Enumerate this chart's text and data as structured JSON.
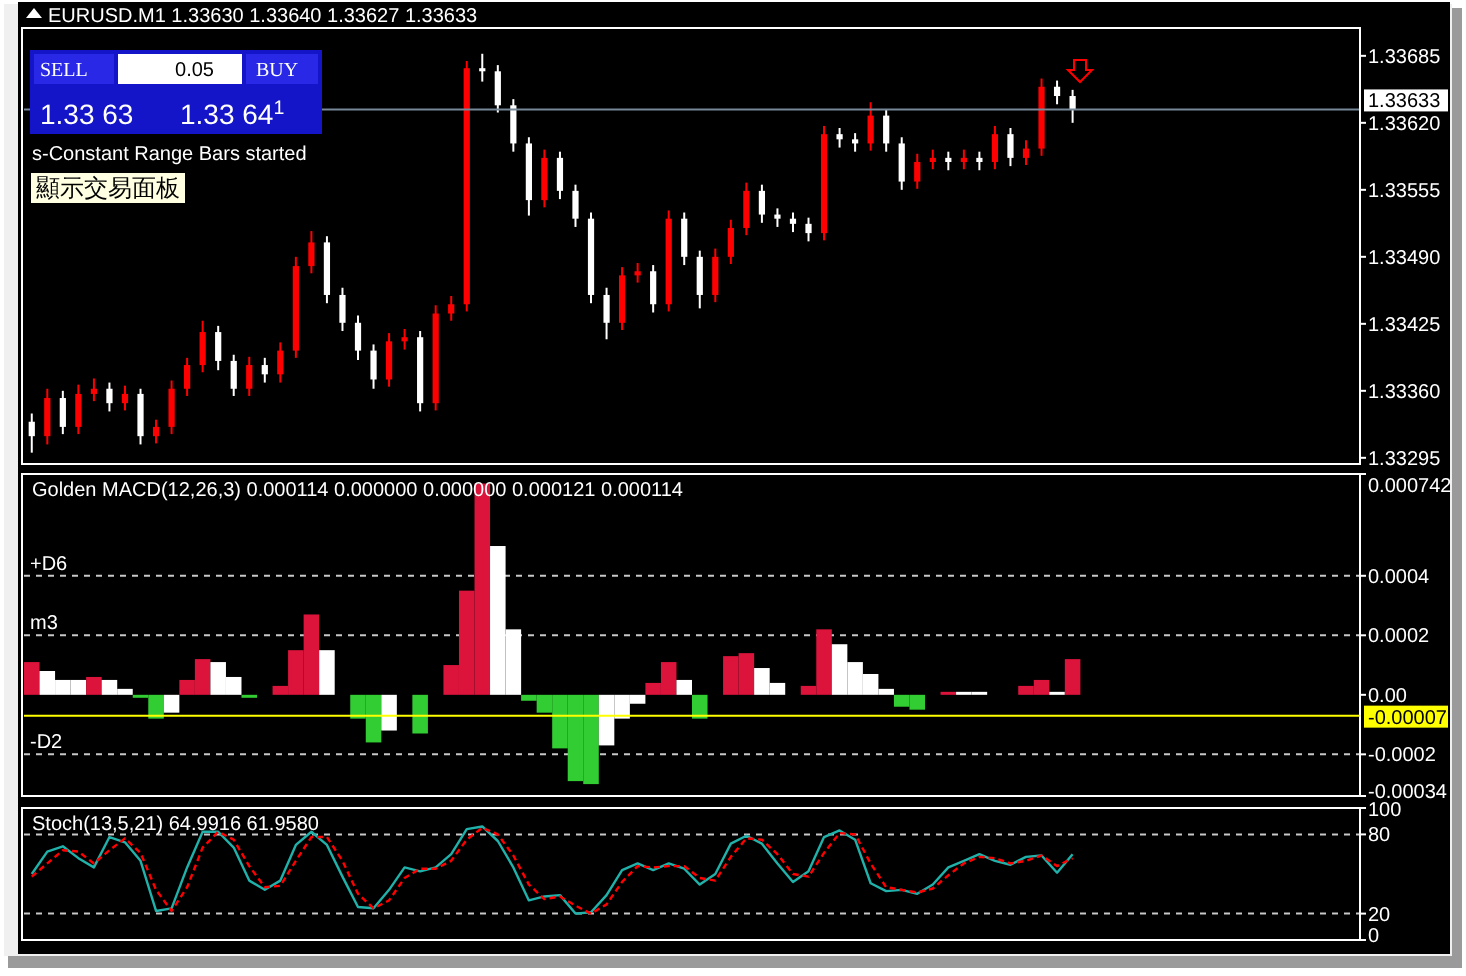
{
  "chart_data": [
    {
      "type": "candlestick",
      "title": "EURUSD.M1 1.33630 1.33640 1.33627 1.33633",
      "annotations": [
        "s-Constant Range Bars started",
        "SELL",
        "0.05",
        "BUY",
        "1.33 63",
        "1.33 64$^{1}$",
        "顯示交易面板"
      ],
      "categories": [
        null,
        null,
        null,
        null,
        null,
        null,
        null,
        null,
        null,
        null,
        null,
        null,
        null,
        null,
        null,
        null,
        null,
        null,
        null,
        null,
        null,
        null,
        null,
        null,
        null,
        null,
        null,
        null,
        null,
        null,
        null,
        null,
        null,
        null,
        null,
        null,
        null,
        null,
        null,
        null,
        null,
        null,
        null,
        null,
        null,
        null,
        null,
        null,
        null,
        null,
        null,
        null,
        null,
        null,
        null,
        null,
        null,
        null,
        null,
        null,
        null,
        null,
        null,
        null,
        null,
        null,
        null,
        null,
        null,
        null,
        null,
        null,
        null,
        null,
        null,
        null,
        null,
        null,
        null,
        null,
        null,
        null,
        null,
        null,
        null,
        null
      ],
      "ohlc": [
        [
          1.3333,
          1.33338,
          1.333,
          1.33316
        ],
        [
          1.33316,
          1.33362,
          1.33308,
          1.33353
        ],
        [
          1.33353,
          1.3336,
          1.33318,
          1.33325
        ],
        [
          1.33325,
          1.33366,
          1.33318,
          1.33357
        ],
        [
          1.33357,
          1.33372,
          1.3335,
          1.33362
        ],
        [
          1.33362,
          1.33368,
          1.3334,
          1.33348
        ],
        [
          1.33348,
          1.33365,
          1.33341,
          1.33357
        ],
        [
          1.33357,
          1.33362,
          1.33308,
          1.33316
        ],
        [
          1.33316,
          1.33332,
          1.33309,
          1.33325
        ],
        [
          1.33325,
          1.3337,
          1.33318,
          1.33362
        ],
        [
          1.33362,
          1.33392,
          1.33355,
          1.33385
        ],
        [
          1.33385,
          1.33428,
          1.33378,
          1.33417
        ],
        [
          1.33417,
          1.33423,
          1.3338,
          1.33389
        ],
        [
          1.33389,
          1.33395,
          1.33355,
          1.33362
        ],
        [
          1.33362,
          1.33393,
          1.33355,
          1.33385
        ],
        [
          1.33385,
          1.33392,
          1.33368,
          1.33376
        ],
        [
          1.33376,
          1.33407,
          1.33368,
          1.33399
        ],
        [
          1.33399,
          1.3349,
          1.33392,
          1.33481
        ],
        [
          1.33481,
          1.33515,
          1.33474,
          1.33504
        ],
        [
          1.33504,
          1.3351,
          1.33445,
          1.33453
        ],
        [
          1.33453,
          1.3346,
          1.33418,
          1.33426
        ],
        [
          1.33426,
          1.33433,
          1.3339,
          1.33399
        ],
        [
          1.33399,
          1.33405,
          1.33362,
          1.33371
        ],
        [
          1.33371,
          1.33416,
          1.33364,
          1.33408
        ],
        [
          1.33408,
          1.3342,
          1.334,
          1.33412
        ],
        [
          1.33412,
          1.33418,
          1.3334,
          1.33348
        ],
        [
          1.33348,
          1.33443,
          1.33341,
          1.33435
        ],
        [
          1.33435,
          1.33452,
          1.33428,
          1.33444
        ],
        [
          1.33444,
          1.3368,
          1.33437,
          1.33673
        ],
        [
          1.33673,
          1.33687,
          1.3366,
          1.3367
        ],
        [
          1.3367,
          1.33676,
          1.3363,
          1.33637
        ],
        [
          1.33637,
          1.33643,
          1.33592,
          1.336
        ],
        [
          1.336,
          1.33606,
          1.3353,
          1.33545
        ],
        [
          1.33545,
          1.33594,
          1.33538,
          1.33586
        ],
        [
          1.33586,
          1.33592,
          1.33546,
          1.33554
        ],
        [
          1.33554,
          1.3356,
          1.33519,
          1.33527
        ],
        [
          1.33527,
          1.33533,
          1.33445,
          1.33453
        ],
        [
          1.33453,
          1.3346,
          1.3341,
          1.33426
        ],
        [
          1.33426,
          1.3348,
          1.33419,
          1.33472
        ],
        [
          1.33472,
          1.33484,
          1.33465,
          1.33476
        ],
        [
          1.33476,
          1.33482,
          1.33436,
          1.33444
        ],
        [
          1.33444,
          1.33535,
          1.33437,
          1.33527
        ],
        [
          1.33527,
          1.33533,
          1.33482,
          1.3349
        ],
        [
          1.3349,
          1.33496,
          1.3344,
          1.33453
        ],
        [
          1.33453,
          1.33498,
          1.33446,
          1.3349
        ],
        [
          1.3349,
          1.33526,
          1.33483,
          1.33518
        ],
        [
          1.33518,
          1.33562,
          1.33511,
          1.33554
        ],
        [
          1.33554,
          1.3356,
          1.33523,
          1.33531
        ],
        [
          1.33531,
          1.33537,
          1.33519,
          1.33527
        ],
        [
          1.33527,
          1.33533,
          1.33514,
          1.33522
        ],
        [
          1.33522,
          1.33528,
          1.33505,
          1.33513
        ],
        [
          1.33513,
          1.33617,
          1.33506,
          1.33609
        ],
        [
          1.33609,
          1.33615,
          1.33596,
          1.33604
        ],
        [
          1.33604,
          1.3361,
          1.33592,
          1.336
        ],
        [
          1.336,
          1.3364,
          1.33593,
          1.33627
        ],
        [
          1.33627,
          1.33633,
          1.33592,
          1.336
        ],
        [
          1.336,
          1.33606,
          1.33555,
          1.33563
        ],
        [
          1.33563,
          1.3359,
          1.33556,
          1.33582
        ],
        [
          1.33582,
          1.33594,
          1.33575,
          1.33586
        ],
        [
          1.33586,
          1.33592,
          1.33574,
          1.33582
        ],
        [
          1.33582,
          1.33594,
          1.33575,
          1.33586
        ],
        [
          1.33586,
          1.33592,
          1.33574,
          1.33582
        ],
        [
          1.33582,
          1.33617,
          1.33575,
          1.33609
        ],
        [
          1.33609,
          1.33615,
          1.33578,
          1.33586
        ],
        [
          1.33586,
          1.33603,
          1.33579,
          1.33595
        ],
        [
          1.33595,
          1.33663,
          1.33588,
          1.33655
        ],
        [
          1.33655,
          1.33661,
          1.33638,
          1.33646
        ],
        [
          1.33646,
          1.33652,
          1.3362,
          1.33633
        ],
        null,
        null,
        null,
        null,
        null,
        null,
        null,
        null,
        null,
        null,
        null,
        null,
        null,
        null,
        null,
        null,
        null,
        null
      ],
      "colors": [
        "#ffffff",
        "#ff0000",
        "#ffffff",
        "#ff0000",
        "#ff0000",
        "#ffffff",
        "#ff0000",
        "#ffffff",
        "#ff0000",
        "#ff0000",
        "#ff0000",
        "#ff0000",
        "#ffffff",
        "#ffffff",
        "#ff0000",
        "#ffffff",
        "#ff0000",
        "#ff0000",
        "#ff0000",
        "#ffffff",
        "#ffffff",
        "#ffffff",
        "#ffffff",
        "#ff0000",
        "#ff0000",
        "#ffffff",
        "#ff0000",
        "#ff0000",
        "#ff0000",
        "#ffffff",
        "#ffffff",
        "#ffffff",
        "#ffffff",
        "#ff0000",
        "#ffffff",
        "#ffffff",
        "#ffffff",
        "#ffffff",
        "#ff0000",
        "#ff0000",
        "#ffffff",
        "#ff0000",
        "#ffffff",
        "#ffffff",
        "#ff0000",
        "#ff0000",
        "#ff0000",
        "#ffffff",
        "#ffffff",
        "#ffffff",
        "#ffffff",
        "#ff0000",
        "#ffffff",
        "#ffffff",
        "#ff0000",
        "#ffffff",
        "#ffffff",
        "#ff0000",
        "#ff0000",
        "#ffffff",
        "#ff0000",
        "#ffffff",
        "#ff0000",
        "#ffffff",
        "#ff0000",
        "#ff0000",
        "#ffffff",
        "#ffffff",
        null,
        null,
        null,
        null,
        null,
        null,
        null,
        null,
        null,
        null,
        null,
        null,
        null,
        null,
        null,
        null,
        null,
        null
      ],
      "ylim": [
        1.33289,
        1.33712
      ],
      "yticks": [
        1.33685,
        {
          "value": 1.3362,
          "label": "1.33620"
        },
        1.33555,
        {
          "value": 1.3349,
          "label": "1.33490"
        },
        1.33425,
        {
          "value": 1.3336,
          "label": "1.33360"
        },
        1.33295
      ],
      "ref_lines": [
        {
          "axis": "y",
          "value": 1.33633,
          "label": "1.33633",
          "color": "#778899",
          "line_style": "solid"
        }
      ]
    },
    {
      "type": "bar",
      "title": "Golden MACD(12,26,3) 0.000114 0.000000 0.000000 0.000121 0.000114",
      "categories": [
        null,
        null,
        null,
        null,
        null,
        null,
        null,
        null,
        null,
        null,
        null,
        null,
        null,
        null,
        null,
        null,
        null,
        null,
        null,
        null,
        null,
        null,
        null,
        null,
        null,
        null,
        null,
        null,
        null,
        null,
        null,
        null,
        null,
        null,
        null,
        null,
        null,
        null,
        null,
        null,
        null,
        null,
        null,
        null,
        null,
        null,
        null,
        null,
        null,
        null,
        null,
        null,
        null,
        null,
        null,
        null,
        null,
        null,
        null,
        null,
        null,
        null,
        null,
        null,
        null,
        null,
        null,
        null,
        null,
        null,
        null,
        null,
        null,
        null,
        null,
        null,
        null,
        null,
        null,
        null,
        null,
        null,
        null,
        null,
        null,
        null
      ],
      "values": [
        0.00011,
        8e-05,
        5e-05,
        5e-05,
        6e-05,
        5e-05,
        2e-05,
        -1e-05,
        -8e-05,
        -6e-05,
        5e-05,
        0.00012,
        0.00011,
        6e-05,
        -1e-05,
        0,
        3e-05,
        0.00015,
        0.00027,
        0.00015,
        0,
        -8e-05,
        -0.00016,
        -0.00012,
        0,
        -0.00013,
        0,
        0.0001,
        0.00035,
        0.00071,
        0.0005,
        0.00022,
        -2e-05,
        -6e-05,
        -0.00018,
        -0.00029,
        -0.0003,
        -0.00017,
        -8e-05,
        -3e-05,
        4e-05,
        0.00011,
        5e-05,
        -8e-05,
        0,
        0.00013,
        0.00014,
        9e-05,
        4e-05,
        0,
        3e-05,
        0.00022,
        0.00017,
        0.00011,
        7e-05,
        2e-05,
        -4e-05,
        -5e-05,
        0,
        1e-05,
        1e-05,
        1e-05,
        0,
        0,
        3e-05,
        5e-05,
        1e-05,
        0.00012,
        null,
        null,
        null,
        null,
        null,
        null,
        null,
        null,
        null,
        null,
        null,
        null,
        null,
        null,
        null,
        null,
        null,
        null
      ],
      "colors": [
        "#dc143c",
        "#ffffff",
        "#ffffff",
        "#ffffff",
        "#dc143c",
        "#ffffff",
        "#ffffff",
        "#32cd32",
        "#32cd32",
        "#ffffff",
        "#dc143c",
        "#dc143c",
        "#ffffff",
        "#ffffff",
        "#32cd32",
        "#ffffff",
        "#dc143c",
        "#dc143c",
        "#dc143c",
        "#ffffff",
        "#ffffff",
        "#32cd32",
        "#32cd32",
        "#ffffff",
        "#ffffff",
        "#32cd32",
        "#ffffff",
        "#dc143c",
        "#dc143c",
        "#dc143c",
        "#ffffff",
        "#ffffff",
        "#32cd32",
        "#32cd32",
        "#32cd32",
        "#32cd32",
        "#32cd32",
        "#ffffff",
        "#ffffff",
        "#ffffff",
        "#dc143c",
        "#dc143c",
        "#ffffff",
        "#32cd32",
        "#ffffff",
        "#dc143c",
        "#dc143c",
        "#ffffff",
        "#ffffff",
        "#ffffff",
        "#dc143c",
        "#dc143c",
        "#ffffff",
        "#ffffff",
        "#ffffff",
        "#ffffff",
        "#32cd32",
        "#32cd32",
        "#ffffff",
        "#dc143c",
        "#ffffff",
        "#ffffff",
        "#ffffff",
        "#ffffff",
        "#dc143c",
        "#dc143c",
        "#ffffff",
        "#dc143c",
        null,
        null,
        null,
        null,
        null,
        null,
        null,
        null,
        null,
        null,
        null,
        null,
        null,
        null,
        null,
        null,
        null,
        null
      ],
      "ylim": [
        -0.00034,
        0.000742
      ],
      "yticks": [
        0.000742,
        0.0004,
        0.0002,
        {
          "value": 0,
          "label": "0.00"
        },
        -0.0002,
        -0.00034
      ],
      "ref_lines": [
        {
          "axis": "y",
          "value": 0.0004,
          "label": "+D6",
          "line_style": "dashed"
        },
        {
          "axis": "y",
          "value": 0.0002,
          "label": "m3",
          "line_style": "dashed"
        },
        {
          "axis": "y",
          "value": -0.0002,
          "label": "-D2",
          "line_style": "dashed"
        },
        {
          "axis": "y",
          "value": -7e-05,
          "label": "-0.00007",
          "color": "#ffff00",
          "line_style": "solid"
        }
      ]
    },
    {
      "type": "line",
      "title": "Stoch(13,5,21) 64.9916 61.9580",
      "categories": [
        null,
        null,
        null,
        null,
        null,
        null,
        null,
        null,
        null,
        null,
        null,
        null,
        null,
        null,
        null,
        null,
        null,
        null,
        null,
        null,
        null,
        null,
        null,
        null,
        null,
        null,
        null,
        null,
        null,
        null,
        null,
        null,
        null,
        null,
        null,
        null,
        null,
        null,
        null,
        null,
        null,
        null,
        null,
        null,
        null,
        null,
        null,
        null,
        null,
        null,
        null,
        null,
        null,
        null,
        null,
        null,
        null,
        null,
        null,
        null,
        null,
        null,
        null,
        null,
        null,
        null,
        null,
        null,
        null,
        null,
        null,
        null,
        null,
        null,
        null,
        null,
        null,
        null,
        null,
        null,
        null,
        null,
        null,
        null,
        null,
        null
      ],
      "series": [
        {
          "color": "#20b2aa",
          "line_style": "solid",
          "values": [
            50,
            67,
            71,
            62,
            55,
            78,
            74,
            60,
            22,
            24,
            55,
            82,
            82,
            70,
            45,
            38,
            45,
            72,
            82,
            72,
            48,
            25,
            24,
            38,
            55,
            52,
            55,
            65,
            84,
            86,
            75,
            55,
            30,
            33,
            34,
            20,
            21,
            34,
            53,
            58,
            53,
            58,
            54,
            42,
            50,
            73,
            79,
            73,
            58,
            44,
            52,
            78,
            83,
            76,
            43,
            37,
            38,
            35,
            42,
            55,
            60,
            65,
            60,
            57,
            63,
            64,
            51,
            65,
            null,
            null,
            null,
            null,
            null,
            null,
            null,
            null,
            null,
            null,
            null,
            null,
            null,
            null,
            null,
            null,
            null,
            null
          ]
        },
        {
          "color": "#ff0000",
          "line_style": "dashed",
          "values": [
            48,
            58,
            68,
            67,
            58,
            68,
            77,
            66,
            38,
            22,
            40,
            70,
            82,
            76,
            56,
            40,
            41,
            60,
            78,
            78,
            60,
            35,
            24,
            30,
            47,
            54,
            54,
            60,
            76,
            85,
            80,
            64,
            42,
            31,
            33,
            26,
            20,
            27,
            44,
            56,
            55,
            56,
            56,
            47,
            45,
            63,
            77,
            76,
            65,
            50,
            48,
            66,
            81,
            80,
            58,
            40,
            38,
            36,
            39,
            49,
            58,
            63,
            62,
            58,
            60,
            64,
            56,
            62,
            null,
            null,
            null,
            null,
            null,
            null,
            null,
            null,
            null,
            null,
            null,
            null,
            null,
            null,
            null,
            null,
            null,
            null
          ]
        }
      ],
      "ylim": [
        0,
        100
      ],
      "yticks": [
        100,
        80,
        20,
        0
      ],
      "ref_lines": [
        {
          "axis": "y",
          "value": 80,
          "line_style": "dashed"
        },
        {
          "axis": "y",
          "value": 20,
          "line_style": "dashed"
        }
      ]
    }
  ]
}
